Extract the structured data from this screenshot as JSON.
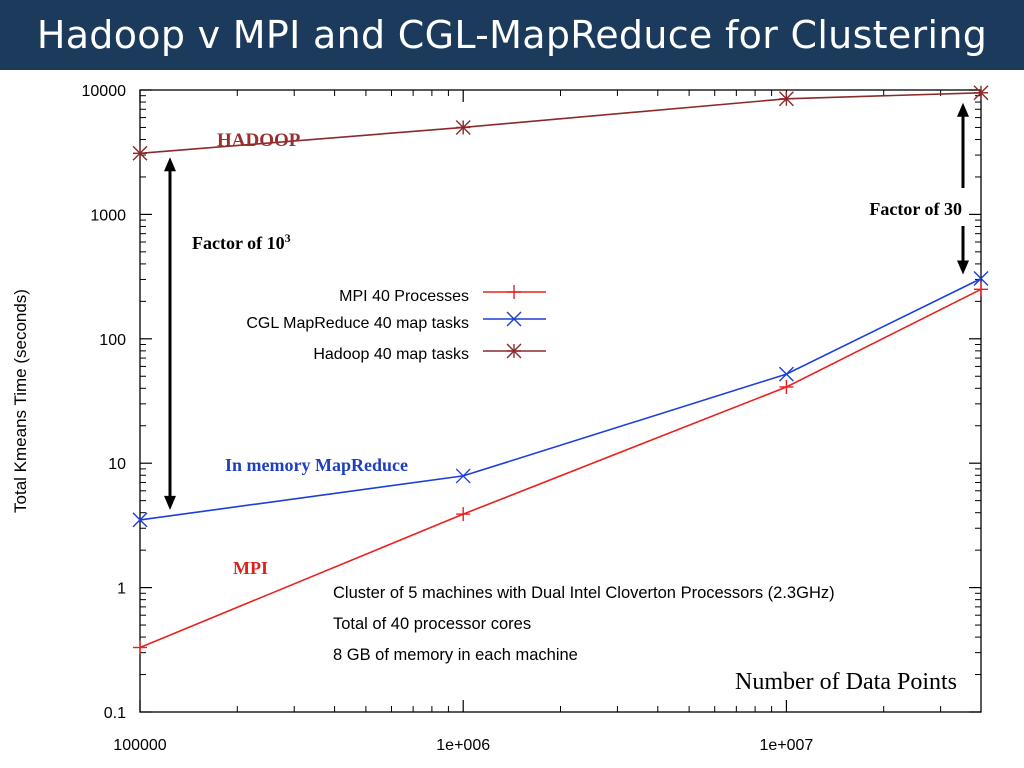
{
  "slide": {
    "title": "Hadoop v MPI and CGL-MapReduce for Clustering"
  },
  "chart_data": {
    "type": "line",
    "title": "",
    "xlabel": "Number of Data Points",
    "ylabel": "Total Kmeans Time (seconds)",
    "x_scale": "log",
    "y_scale": "log",
    "xlim": [
      100000,
      40000000
    ],
    "ylim": [
      0.1,
      10000
    ],
    "x_ticks": [
      {
        "value": 100000,
        "label": "100000"
      },
      {
        "value": 1000000,
        "label": "1e+006"
      },
      {
        "value": 10000000,
        "label": "1e+007"
      }
    ],
    "y_ticks": [
      {
        "value": 10000,
        "label": "10000"
      },
      {
        "value": 1000,
        "label": "1000"
      },
      {
        "value": 100,
        "label": "100"
      },
      {
        "value": 10,
        "label": "10"
      },
      {
        "value": 1,
        "label": "1"
      },
      {
        "value": 0.1,
        "label": "0.1"
      }
    ],
    "grid": false,
    "legend_position": "top-right",
    "series": [
      {
        "name": "MPI 40 Processes",
        "key": "mpi",
        "color": "#e8211d",
        "marker": "plus",
        "x": [
          100000,
          1000000,
          10000000,
          40000000
        ],
        "y": [
          0.33,
          3.9,
          41,
          250
        ]
      },
      {
        "name": "CGL MapReduce 40 map tasks",
        "key": "cgl",
        "color": "#1c3fd8",
        "marker": "cross",
        "x": [
          100000,
          1000000,
          10000000,
          40000000
        ],
        "y": [
          3.5,
          7.9,
          52,
          305
        ]
      },
      {
        "name": "Hadoop 40 map tasks",
        "key": "hadoop",
        "color": "#8b2a2a",
        "marker": "star",
        "x": [
          100000,
          1000000,
          10000000,
          40000000
        ],
        "y": [
          3100,
          5000,
          8500,
          9500
        ]
      }
    ],
    "annotations": {
      "hadoop_label": {
        "text": "HADOOP",
        "color": "#9b2e2e"
      },
      "mapreduce_label": {
        "text": "In memory MapReduce",
        "color": "#1f3fbf"
      },
      "mpi_label": {
        "text": "MPI",
        "color": "#d8241c"
      },
      "factor_left": {
        "text": "Factor of 10",
        "superscript": "3",
        "from_y": 3100,
        "to_y": 3.5
      },
      "factor_right": {
        "text": "Factor of 30",
        "from_y": 9500,
        "to_y": 305
      },
      "cluster_info": [
        "Cluster of 5 machines with Dual Intel Cloverton Processors (2.3GHz)",
        "Total of 40 processor cores",
        "8 GB of memory in each machine"
      ]
    }
  }
}
